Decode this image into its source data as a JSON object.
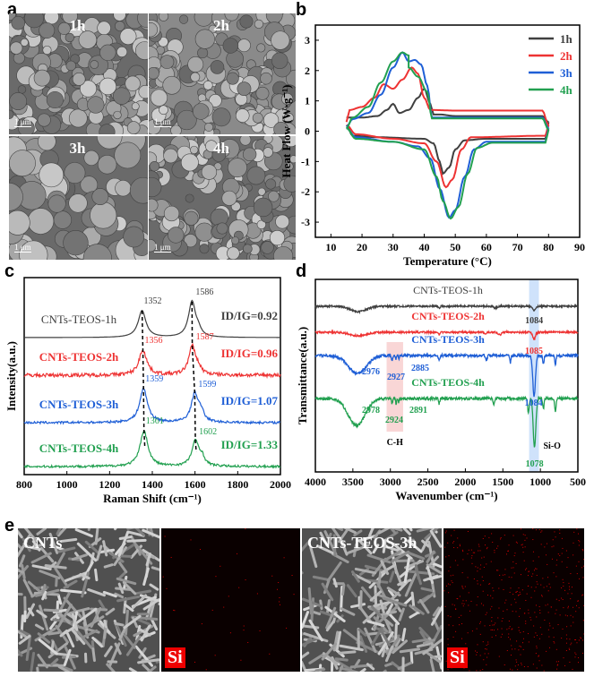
{
  "panel_labels": {
    "a": "a",
    "b": "b",
    "c": "c",
    "d": "d",
    "e": "e"
  },
  "panel_a": {
    "images": [
      {
        "label": "1h",
        "scale": "1 μm"
      },
      {
        "label": "2h",
        "scale": "1 μm"
      },
      {
        "label": "3h",
        "scale": "1 μm"
      },
      {
        "label": "4h",
        "scale": "1 μm"
      }
    ]
  },
  "panel_e": {
    "images": [
      {
        "label": "CNTs",
        "type": "SEM"
      },
      {
        "label": "Si",
        "type": "EDS map"
      },
      {
        "label": "CNTs-TEOS-3h",
        "type": "SEM"
      },
      {
        "label": "Si",
        "type": "EDS map"
      }
    ]
  },
  "colors": {
    "1h": "#404040",
    "2h": "#ee3333",
    "3h": "#1f5fd6",
    "4h": "#22a050"
  },
  "chart_data": [
    {
      "type": "line",
      "panel": "b",
      "xlabel": "Temperature (°C)",
      "ylabel": "Heat Flow (W·g⁻¹)",
      "xlim": [
        5,
        90
      ],
      "ylim": [
        -3.5,
        3.5
      ],
      "xticks": [
        10,
        20,
        30,
        40,
        50,
        60,
        70,
        80,
        90
      ],
      "yticks": [
        -3,
        -2,
        -1,
        0,
        1,
        2,
        3
      ],
      "legend": "top-right",
      "series": [
        {
          "name": "1h",
          "heating": [
            [
              15,
              0.45
            ],
            [
              20,
              0.45
            ],
            [
              25,
              0.5
            ],
            [
              28,
              0.7
            ],
            [
              30,
              0.9
            ],
            [
              32,
              0.6
            ],
            [
              35,
              0.7
            ],
            [
              38,
              1.1
            ],
            [
              40,
              1.4
            ],
            [
              42,
              0.9
            ],
            [
              43,
              0.55
            ],
            [
              45,
              0.55
            ],
            [
              50,
              0.5
            ],
            [
              78,
              0.5
            ],
            [
              80,
              0.3
            ]
          ],
          "cooling": [
            [
              15,
              0.2
            ],
            [
              17,
              -0.15
            ],
            [
              25,
              -0.2
            ],
            [
              40,
              -0.25
            ],
            [
              43,
              -0.4
            ],
            [
              45,
              -1.0
            ],
            [
              46,
              -1.4
            ],
            [
              48,
              -1.2
            ],
            [
              50,
              -0.6
            ],
            [
              53,
              -0.3
            ],
            [
              60,
              -0.25
            ],
            [
              79,
              -0.25
            ],
            [
              80,
              0.3
            ]
          ]
        },
        {
          "name": "2h",
          "heating": [
            [
              15,
              0.3
            ],
            [
              16,
              0.7
            ],
            [
              20,
              0.8
            ],
            [
              24,
              1.1
            ],
            [
              27,
              1.55
            ],
            [
              30,
              1.4
            ],
            [
              33,
              1.7
            ],
            [
              36,
              2.1
            ],
            [
              38,
              1.9
            ],
            [
              40,
              1.1
            ],
            [
              42,
              0.7
            ],
            [
              50,
              0.68
            ],
            [
              78,
              0.68
            ],
            [
              80,
              0.2
            ]
          ],
          "cooling": [
            [
              15,
              0.2
            ],
            [
              18,
              -0.1
            ],
            [
              30,
              -0.25
            ],
            [
              40,
              -0.4
            ],
            [
              44,
              -1.0
            ],
            [
              47,
              -1.85
            ],
            [
              49,
              -1.6
            ],
            [
              52,
              -0.6
            ],
            [
              55,
              -0.2
            ],
            [
              79,
              -0.15
            ],
            [
              80,
              0.2
            ]
          ]
        },
        {
          "name": "3h",
          "heating": [
            [
              15,
              0.15
            ],
            [
              17,
              0.4
            ],
            [
              22,
              0.6
            ],
            [
              26,
              1.2
            ],
            [
              30,
              2.1
            ],
            [
              33,
              2.6
            ],
            [
              35,
              2.3
            ],
            [
              37,
              2.35
            ],
            [
              39,
              2.2
            ],
            [
              41,
              1.5
            ],
            [
              42.5,
              0.45
            ],
            [
              78,
              0.45
            ],
            [
              80,
              0.1
            ]
          ],
          "cooling": [
            [
              15,
              0.1
            ],
            [
              18,
              -0.2
            ],
            [
              30,
              -0.35
            ],
            [
              38,
              -0.5
            ],
            [
              42,
              -0.9
            ],
            [
              45,
              -1.9
            ],
            [
              48,
              -2.85
            ],
            [
              50,
              -2.6
            ],
            [
              53,
              -1.5
            ],
            [
              56,
              -0.6
            ],
            [
              60,
              -0.35
            ],
            [
              79,
              -0.35
            ],
            [
              80,
              0.1
            ]
          ]
        },
        {
          "name": "4h",
          "heating": [
            [
              15,
              0.1
            ],
            [
              17,
              0.45
            ],
            [
              22,
              0.8
            ],
            [
              26,
              1.6
            ],
            [
              30,
              2.3
            ],
            [
              33,
              2.6
            ],
            [
              35,
              2.5
            ],
            [
              35,
              2.1
            ],
            [
              38,
              1.8
            ],
            [
              41,
              1.3
            ],
            [
              42.5,
              0.42
            ],
            [
              78,
              0.42
            ],
            [
              80,
              0.05
            ]
          ],
          "cooling": [
            [
              15,
              0.1
            ],
            [
              18,
              -0.25
            ],
            [
              30,
              -0.35
            ],
            [
              40,
              -0.6
            ],
            [
              44,
              -1.5
            ],
            [
              46,
              -2.3
            ],
            [
              48.5,
              -2.88
            ],
            [
              51,
              -2.5
            ],
            [
              54,
              -1.4
            ],
            [
              57,
              -0.55
            ],
            [
              62,
              -0.38
            ],
            [
              79,
              -0.38
            ],
            [
              80,
              0.05
            ]
          ]
        }
      ]
    },
    {
      "type": "line",
      "panel": "c",
      "xlabel": "Raman Shift (cm⁻¹)",
      "ylabel": "Intensity(a.u.)",
      "xlim": [
        800,
        2000
      ],
      "xticks": [
        800,
        1000,
        1200,
        1400,
        1600,
        1800,
        2000
      ],
      "series": [
        {
          "name": "CNTs-TEOS-1h",
          "key": "1h",
          "D": 1352,
          "G": 1586,
          "ratio": "ID/IG=0.92",
          "ratio_value": 0.92
        },
        {
          "name": "CNTs-TEOS-2h",
          "key": "2h",
          "D": 1356,
          "G": 1587,
          "ratio": "ID/IG=0.96",
          "ratio_value": 0.96
        },
        {
          "name": "CNTs-TEOS-3h",
          "key": "3h",
          "D": 1359,
          "G": 1599,
          "ratio": "ID/IG=1.07",
          "ratio_value": 1.07
        },
        {
          "name": "CNTs-TEOS-4h",
          "key": "4h",
          "D": 1361,
          "G": 1602,
          "ratio": "ID/IG=1.33",
          "ratio_value": 1.33
        }
      ]
    },
    {
      "type": "line",
      "panel": "d",
      "xlabel": "Wavenumber (cm⁻¹)",
      "ylabel": "Transmittance(a.u.)",
      "xlim": [
        4000,
        500
      ],
      "xticks": [
        4000,
        3500,
        3000,
        2500,
        2000,
        1500,
        1000,
        500
      ],
      "band_annotations": {
        "ch": "C-H",
        "sio": "Si-O"
      },
      "series": [
        {
          "name": "CNTs-TEOS-1h",
          "key": "1h",
          "peak_labels": [
            "1084"
          ]
        },
        {
          "name": "CNTs-TEOS-2h",
          "key": "2h",
          "peak_labels": [
            "1085"
          ]
        },
        {
          "name": "CNTs-TEOS-3h",
          "key": "3h",
          "peak_labels": [
            "2976",
            "2927",
            "2885",
            "1084"
          ]
        },
        {
          "name": "CNTs-TEOS-4h",
          "key": "4h",
          "peak_labels": [
            "2978",
            "2924",
            "2891",
            "1078"
          ]
        }
      ]
    }
  ]
}
